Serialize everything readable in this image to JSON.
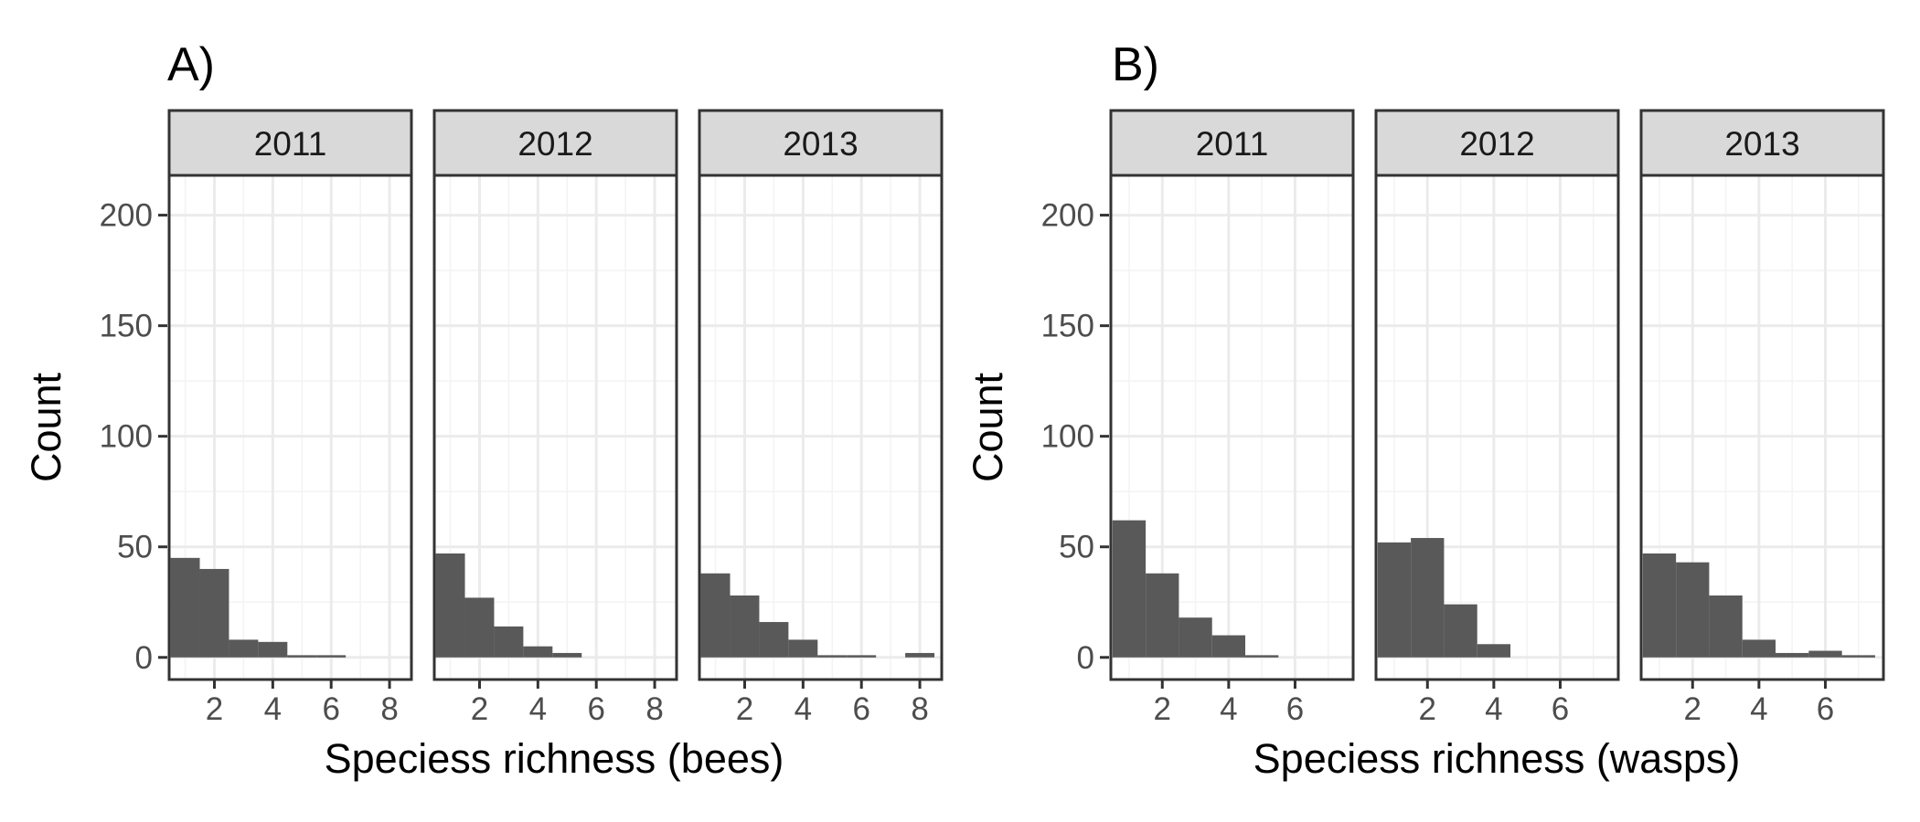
{
  "chart_data": [
    {
      "type": "bar",
      "panel_label": "A)",
      "xlabel": "Speciess richness (bees)",
      "ylabel": "Count",
      "ylim": [
        -10,
        218
      ],
      "yticks": [
        0,
        50,
        100,
        150,
        200
      ],
      "xlim": [
        0.45,
        8.75
      ],
      "xticks": [
        2,
        4,
        6,
        8
      ],
      "binwidth": 1,
      "grid": true,
      "facets": [
        {
          "label": "2011",
          "bins": [
            1,
            2,
            3,
            4,
            5,
            6
          ],
          "values": [
            45,
            40,
            8,
            7,
            1,
            1
          ]
        },
        {
          "label": "2012",
          "bins": [
            1,
            2,
            3,
            4,
            5
          ],
          "values": [
            47,
            27,
            14,
            5,
            2
          ]
        },
        {
          "label": "2013",
          "bins": [
            1,
            2,
            3,
            4,
            5,
            6,
            8
          ],
          "values": [
            38,
            28,
            16,
            8,
            1,
            1,
            2
          ]
        }
      ]
    },
    {
      "type": "bar",
      "panel_label": "B)",
      "xlabel": "Speciess richness (wasps)",
      "ylabel": "Count",
      "ylim": [
        -10,
        218
      ],
      "yticks": [
        0,
        50,
        100,
        150,
        200
      ],
      "xlim": [
        0.45,
        7.75
      ],
      "xticks": [
        2,
        4,
        6
      ],
      "binwidth": 1,
      "grid": true,
      "facets": [
        {
          "label": "2011",
          "bins": [
            1,
            2,
            3,
            4,
            5
          ],
          "values": [
            62,
            38,
            18,
            10,
            1
          ]
        },
        {
          "label": "2012",
          "bins": [
            1,
            2,
            3,
            4
          ],
          "values": [
            52,
            54,
            24,
            6
          ]
        },
        {
          "label": "2013",
          "bins": [
            1,
            2,
            3,
            4,
            5,
            6,
            7
          ],
          "values": [
            47,
            43,
            28,
            8,
            2,
            3,
            1
          ]
        }
      ]
    }
  ]
}
